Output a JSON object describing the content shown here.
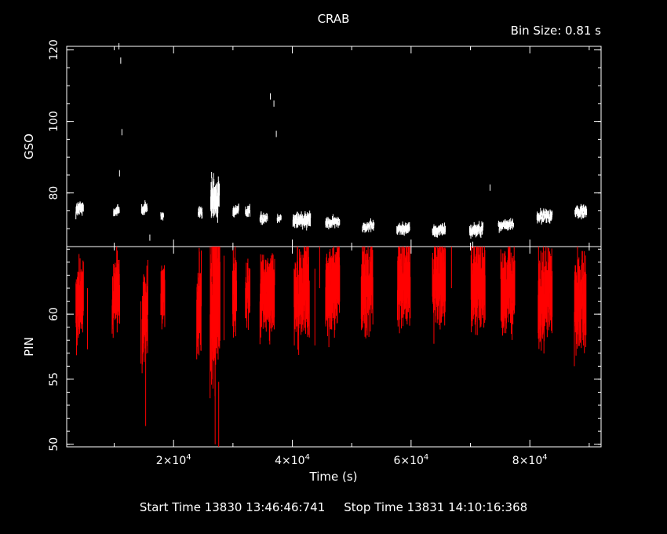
{
  "chart_data": {
    "type": "scatter",
    "title": "CRAB",
    "bin_size_label": "Bin Size:  0.81  s",
    "xlabel": "Time (s)",
    "xlim": [
      2000,
      92000
    ],
    "x_ticks": [
      {
        "value": 20000,
        "mantissa": "2",
        "exp": "4"
      },
      {
        "value": 40000,
        "mantissa": "4",
        "exp": "4"
      },
      {
        "value": 60000,
        "mantissa": "6",
        "exp": "4"
      },
      {
        "value": 80000,
        "mantissa": "8",
        "exp": "4"
      }
    ],
    "panels": [
      {
        "name": "gso",
        "ylabel": "GSO",
        "ylim": [
          65,
          121
        ],
        "y_ticks": [
          80,
          100,
          120
        ],
        "color": "#ffffff",
        "segments": [
          [
            4200,
            75.5,
            1.2,
            1300
          ],
          [
            10400,
            75.0,
            0.9,
            1000
          ],
          [
            15100,
            75.5,
            1.0,
            1000
          ],
          [
            18100,
            73.5,
            0.7,
            500
          ],
          [
            24500,
            74.5,
            0.9,
            700
          ],
          [
            27000,
            78.0,
            3.0,
            1500
          ],
          [
            30500,
            75.0,
            0.9,
            1000
          ],
          [
            32500,
            75.0,
            0.9,
            800
          ],
          [
            35200,
            73.0,
            0.9,
            1300
          ],
          [
            37800,
            73.0,
            0.7,
            700
          ],
          [
            41600,
            72.5,
            1.2,
            3000
          ],
          [
            46800,
            71.8,
            0.8,
            2400
          ],
          [
            52800,
            70.7,
            0.8,
            2000
          ],
          [
            58700,
            70.0,
            0.9,
            2200
          ],
          [
            64700,
            69.6,
            0.9,
            2200
          ],
          [
            71000,
            69.8,
            1.0,
            2300
          ],
          [
            76000,
            71.0,
            0.8,
            2600
          ],
          [
            82500,
            73.5,
            1.0,
            2600
          ],
          [
            88600,
            74.8,
            1.0,
            2000
          ]
        ],
        "outliers": [
          [
            10800,
            121.0
          ],
          [
            11100,
            117.0
          ],
          [
            11300,
            97.0
          ],
          [
            10900,
            85.5
          ],
          [
            36300,
            107.0
          ],
          [
            36900,
            105.0
          ],
          [
            37300,
            96.5
          ],
          [
            26400,
            85.0
          ],
          [
            26800,
            83.0
          ],
          [
            73300,
            81.5
          ],
          [
            16000,
            67.5
          ],
          [
            70400,
            65.5
          ]
        ]
      },
      {
        "name": "pin",
        "ylabel": "PIN",
        "ylim": [
          49.8,
          65.2
        ],
        "y_ticks": [
          50,
          55,
          60
        ],
        "color": "#ff0000",
        "segments": [
          [
            4200,
            61.2,
            1.3,
            1300
          ],
          [
            10300,
            61.5,
            1.3,
            1300
          ],
          [
            15200,
            59.8,
            1.6,
            1000
          ],
          [
            18200,
            61.5,
            1.2,
            700
          ],
          [
            24300,
            60.5,
            1.6,
            800
          ],
          [
            27000,
            61.5,
            3.0,
            1700
          ],
          [
            30300,
            61.8,
            1.5,
            700
          ],
          [
            32500,
            61.5,
            1.0,
            800
          ],
          [
            35800,
            61.5,
            1.5,
            2500
          ],
          [
            41600,
            61.8,
            1.6,
            2600
          ],
          [
            46800,
            62.2,
            1.6,
            2400
          ],
          [
            52600,
            62.2,
            1.6,
            2000
          ],
          [
            58800,
            62.2,
            1.6,
            2200
          ],
          [
            64700,
            62.6,
            1.6,
            2200
          ],
          [
            71300,
            62.4,
            1.6,
            2400
          ],
          [
            76300,
            62.0,
            1.6,
            2400
          ],
          [
            82600,
            61.6,
            1.6,
            2400
          ],
          [
            88500,
            61.0,
            1.6,
            2000
          ]
        ],
        "spikes": [
          [
            5500,
            57.3,
            62.0
          ],
          [
            10500,
            58.6,
            61.0
          ],
          [
            14500,
            56.2,
            61.0
          ],
          [
            15300,
            51.4,
            57.4
          ],
          [
            27000,
            50.0,
            65.2
          ],
          [
            26600,
            55.0,
            65.0
          ],
          [
            27600,
            49.8,
            54.8
          ],
          [
            28500,
            58.0,
            64.5
          ],
          [
            43800,
            57.6,
            63.5
          ],
          [
            44600,
            62.0,
            65.2
          ],
          [
            47000,
            63.0,
            65.2
          ],
          [
            64500,
            59.6,
            62.0
          ],
          [
            66800,
            62.0,
            65.2
          ],
          [
            70900,
            59.4,
            63.0
          ],
          [
            88500,
            57.8,
            62.5
          ]
        ]
      }
    ]
  },
  "footer": {
    "start": "Start Time 13830 13:46:46:741",
    "stop": "Stop Time 13831 14:10:16:368"
  }
}
